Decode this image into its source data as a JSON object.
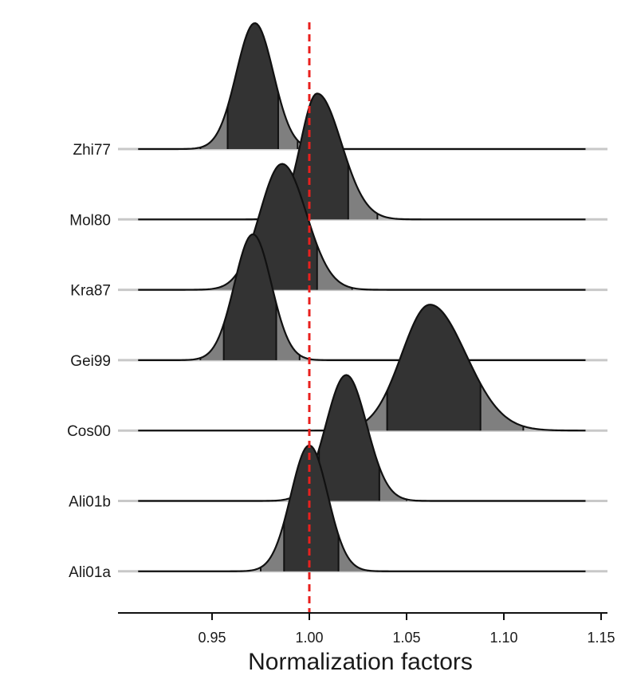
{
  "chart_data": {
    "type": "ridgeline",
    "title": "",
    "xlabel": "Normalization factors",
    "ylabel": "",
    "xlim": [
      0.9,
      1.15
    ],
    "x_ticks": [
      0.95,
      1.0,
      1.05,
      1.1,
      1.15
    ],
    "x_tick_labels": [
      "0.95",
      "1.00",
      "1.05",
      "1.10",
      "1.15"
    ],
    "reference_line": {
      "x": 1.0,
      "style": "dashed",
      "color": "#e8201e"
    },
    "interval_shading": [
      "outer 95% interval (light grey)",
      "80% interval (grey)",
      "50% interval (dark grey)"
    ],
    "series": [
      {
        "name": "Zhi77",
        "mode": 0.972,
        "sd_left": 0.0095,
        "sd_right": 0.0095,
        "ci50": [
          0.958,
          0.984
        ],
        "ci80": [
          0.944,
          0.994
        ],
        "ci95": [
          0.936,
          1.002
        ]
      },
      {
        "name": "Mol80",
        "mode": 1.004,
        "sd_left": 0.0085,
        "sd_right": 0.0125,
        "ci50": [
          0.991,
          1.02
        ],
        "ci80": [
          0.977,
          1.035
        ],
        "ci95": [
          0.968,
          1.043
        ]
      },
      {
        "name": "Kra87",
        "mode": 0.986,
        "sd_left": 0.0115,
        "sd_right": 0.0125,
        "ci50": [
          0.968,
          1.004
        ],
        "ci80": [
          0.949,
          1.022
        ],
        "ci95": [
          0.938,
          1.03
        ]
      },
      {
        "name": "Gei99",
        "mode": 0.971,
        "sd_left": 0.0095,
        "sd_right": 0.0095,
        "ci50": [
          0.956,
          0.983
        ],
        "ci80": [
          0.944,
          0.995
        ],
        "ci95": [
          0.936,
          1.003
        ]
      },
      {
        "name": "Cos00",
        "mode": 1.062,
        "sd_left": 0.0145,
        "sd_right": 0.0185,
        "ci50": [
          1.04,
          1.088
        ],
        "ci80": [
          1.016,
          1.11
        ],
        "ci95": [
          1.004,
          1.123
        ]
      },
      {
        "name": "Ali01b",
        "mode": 1.019,
        "sd_left": 0.0105,
        "sd_right": 0.0105,
        "ci50": [
          1.005,
          1.036
        ],
        "ci80": [
          0.99,
          1.05
        ],
        "ci95": [
          0.982,
          1.058
        ]
      },
      {
        "name": "Ali01a",
        "mode": 1.0,
        "sd_left": 0.0095,
        "sd_right": 0.0095,
        "ci50": [
          0.987,
          1.015
        ],
        "ci80": [
          0.975,
          1.03
        ],
        "ci95": [
          0.966,
          1.037
        ]
      }
    ],
    "curve_x_range": [
      0.912,
      1.142
    ],
    "legend": "none",
    "grid": false
  }
}
